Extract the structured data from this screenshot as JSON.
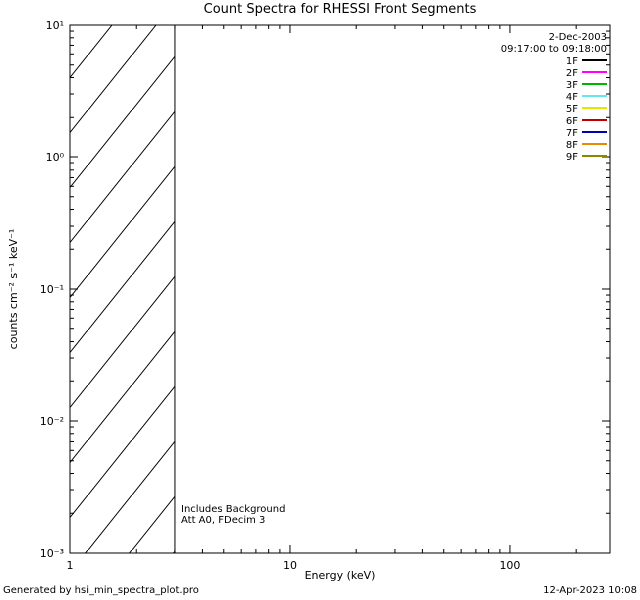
{
  "header": {
    "date": "2-Dec-2003",
    "time_range": "09:17:00 to 09:18:00"
  },
  "plot_annotations": {
    "line1": "Includes Background",
    "line2": "Att A0, FDecim 3"
  },
  "footer": {
    "left": "Generated by hsi_min_spectra_plot.pro",
    "right": "12-Apr-2023 10:08"
  },
  "chart_data": {
    "type": "line",
    "title": "Count Spectra for RHESSI Front Segments",
    "xlabel": "Energy (keV)",
    "ylabel": "counts cm⁻² s⁻¹ keV⁻¹",
    "xscale": "log",
    "yscale": "log",
    "xlim": [
      1,
      285
    ],
    "ylim": [
      0.001,
      10
    ],
    "x_ticks": [
      1,
      10,
      100
    ],
    "x_tick_labels": [
      "1",
      "10",
      "100"
    ],
    "y_ticks": [
      0.001,
      0.01,
      0.1,
      1,
      10
    ],
    "y_tick_labels": [
      "10⁻³",
      "10⁻²",
      "10⁻¹",
      "10⁰",
      "10¹"
    ],
    "grid": false,
    "hatched_region": {
      "x_from": 1,
      "x_to": 3
    },
    "legend": {
      "position": "top-right",
      "entries": [
        {
          "label": "1F",
          "color": "#000000"
        },
        {
          "label": "2F",
          "color": "#ff00ff"
        },
        {
          "label": "3F",
          "color": "#00b400"
        },
        {
          "label": "4F",
          "color": "#63e7e7"
        },
        {
          "label": "5F",
          "color": "#e6e600"
        },
        {
          "label": "6F",
          "color": "#c00000"
        },
        {
          "label": "7F",
          "color": "#0000b4"
        },
        {
          "label": "8F",
          "color": "#e68a00"
        },
        {
          "label": "9F",
          "color": "#8a8a00"
        }
      ]
    },
    "series": []
  }
}
